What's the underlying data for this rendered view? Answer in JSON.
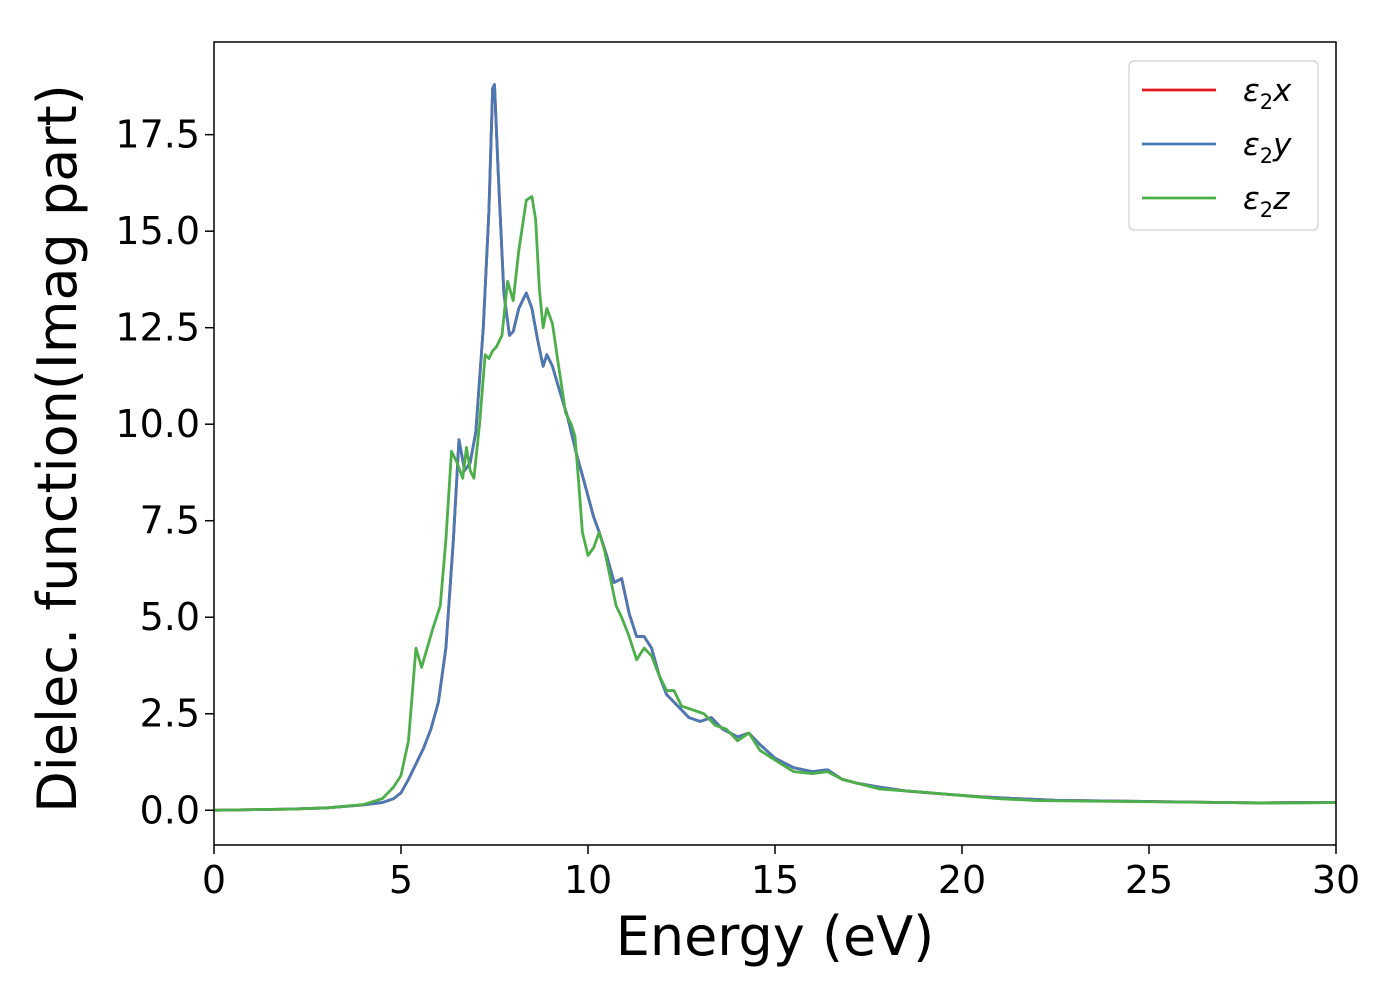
{
  "chart_data": {
    "type": "line",
    "title": "",
    "xlabel": "Energy (eV)",
    "ylabel": "Dielec. function(Imag part)",
    "xlim": [
      0,
      30
    ],
    "ylim": [
      -0.9,
      19.9
    ],
    "xticks": [
      0,
      5,
      10,
      15,
      20,
      25,
      30
    ],
    "xtick_labels": [
      "0",
      "5",
      "10",
      "15",
      "20",
      "25",
      "30"
    ],
    "yticks": [
      0.0,
      2.5,
      5.0,
      7.5,
      10.0,
      12.5,
      15.0,
      17.5
    ],
    "ytick_labels": [
      "0.0",
      "2.5",
      "5.0",
      "7.5",
      "10.0",
      "12.5",
      "15.0",
      "17.5"
    ],
    "grid": false,
    "legend_position": "top-right",
    "series": [
      {
        "name": "ε₂x",
        "legend_base": "ε",
        "legend_sub": "2",
        "legend_tail": "x",
        "color": "#e41a1c",
        "x": [
          0,
          2,
          3,
          4,
          4.5,
          4.8,
          5.0,
          5.2,
          5.4,
          5.6,
          5.8,
          6.0,
          6.2,
          6.4,
          6.55,
          6.7,
          6.85,
          7.0,
          7.2,
          7.35,
          7.45,
          7.5,
          7.6,
          7.75,
          7.9,
          8.0,
          8.15,
          8.35,
          8.5,
          8.65,
          8.8,
          8.9,
          9.05,
          9.2,
          9.45,
          9.7,
          9.9,
          10.15,
          10.3,
          10.5,
          10.7,
          10.9,
          11.1,
          11.3,
          11.5,
          11.7,
          11.9,
          12.1,
          12.4,
          12.7,
          13.0,
          13.3,
          13.6,
          13.8,
          14.0,
          14.3,
          14.6,
          15.0,
          15.5,
          16.0,
          16.4,
          16.8,
          17.2,
          17.8,
          18.5,
          19.5,
          20.5,
          21.5,
          22.5,
          24,
          25.5,
          27,
          28,
          29,
          30
        ],
        "y": [
          0,
          0.03,
          0.06,
          0.14,
          0.2,
          0.3,
          0.45,
          0.8,
          1.2,
          1.6,
          2.1,
          2.8,
          4.2,
          7.0,
          9.6,
          8.8,
          9.0,
          9.8,
          12.5,
          15.5,
          18.7,
          18.8,
          16.5,
          13.4,
          12.3,
          12.4,
          13.0,
          13.4,
          13.0,
          12.2,
          11.5,
          11.8,
          11.5,
          11.0,
          10.2,
          9.2,
          8.5,
          7.6,
          7.2,
          6.6,
          5.9,
          6.0,
          5.1,
          4.5,
          4.5,
          4.2,
          3.5,
          3.0,
          2.7,
          2.4,
          2.3,
          2.4,
          2.1,
          2.0,
          1.9,
          2.0,
          1.7,
          1.35,
          1.1,
          1.0,
          1.05,
          0.8,
          0.7,
          0.6,
          0.5,
          0.42,
          0.35,
          0.3,
          0.26,
          0.24,
          0.22,
          0.2,
          0.19,
          0.2,
          0.2
        ]
      },
      {
        "name": "ε₂y",
        "legend_base": "ε",
        "legend_sub": "2",
        "legend_tail": "y",
        "color": "#4a7ab5",
        "x": [
          0,
          2,
          3,
          4,
          4.5,
          4.8,
          5.0,
          5.2,
          5.4,
          5.6,
          5.8,
          6.0,
          6.2,
          6.4,
          6.55,
          6.7,
          6.85,
          7.0,
          7.2,
          7.35,
          7.45,
          7.5,
          7.6,
          7.75,
          7.9,
          8.0,
          8.15,
          8.35,
          8.5,
          8.65,
          8.8,
          8.9,
          9.05,
          9.2,
          9.45,
          9.7,
          9.9,
          10.15,
          10.3,
          10.5,
          10.7,
          10.9,
          11.1,
          11.3,
          11.5,
          11.7,
          11.9,
          12.1,
          12.4,
          12.7,
          13.0,
          13.3,
          13.6,
          13.8,
          14.0,
          14.3,
          14.6,
          15.0,
          15.5,
          16.0,
          16.4,
          16.8,
          17.2,
          17.8,
          18.5,
          19.5,
          20.5,
          21.5,
          22.5,
          24,
          25.5,
          27,
          28,
          29,
          30
        ],
        "y": [
          0,
          0.03,
          0.06,
          0.14,
          0.2,
          0.3,
          0.45,
          0.8,
          1.2,
          1.6,
          2.1,
          2.8,
          4.2,
          7.0,
          9.6,
          8.8,
          9.0,
          9.8,
          12.5,
          15.5,
          18.7,
          18.8,
          16.5,
          13.4,
          12.3,
          12.4,
          13.0,
          13.4,
          13.0,
          12.2,
          11.5,
          11.8,
          11.5,
          11.0,
          10.2,
          9.2,
          8.5,
          7.6,
          7.2,
          6.6,
          5.9,
          6.0,
          5.1,
          4.5,
          4.5,
          4.2,
          3.5,
          3.0,
          2.7,
          2.4,
          2.3,
          2.4,
          2.1,
          2.0,
          1.9,
          2.0,
          1.7,
          1.35,
          1.1,
          1.0,
          1.05,
          0.8,
          0.7,
          0.6,
          0.5,
          0.42,
          0.35,
          0.3,
          0.26,
          0.24,
          0.22,
          0.2,
          0.19,
          0.2,
          0.2
        ]
      },
      {
        "name": "ε₂z",
        "legend_base": "ε",
        "legend_sub": "2",
        "legend_tail": "z",
        "color": "#4daf4a",
        "x": [
          0,
          2,
          3,
          4,
          4.5,
          4.8,
          5.0,
          5.2,
          5.4,
          5.55,
          5.7,
          5.85,
          6.05,
          6.2,
          6.35,
          6.5,
          6.65,
          6.75,
          6.85,
          6.95,
          7.1,
          7.25,
          7.35,
          7.45,
          7.55,
          7.7,
          7.85,
          8.0,
          8.15,
          8.35,
          8.5,
          8.6,
          8.7,
          8.8,
          8.9,
          9.05,
          9.2,
          9.4,
          9.55,
          9.65,
          9.75,
          9.85,
          10.0,
          10.15,
          10.3,
          10.45,
          10.6,
          10.75,
          10.9,
          11.1,
          11.3,
          11.5,
          11.7,
          11.9,
          12.1,
          12.3,
          12.5,
          12.8,
          13.1,
          13.4,
          13.7,
          14.0,
          14.3,
          14.6,
          15.0,
          15.5,
          16.0,
          16.4,
          16.8,
          17.2,
          17.8,
          18.5,
          19.2,
          20.0,
          21.0,
          22.0,
          23.0,
          24.0,
          25.0,
          26.0,
          27.0,
          28.0,
          29.0,
          30.0
        ],
        "y": [
          0,
          0.03,
          0.06,
          0.15,
          0.3,
          0.6,
          0.9,
          1.8,
          4.2,
          3.7,
          4.2,
          4.7,
          5.3,
          7.0,
          9.3,
          9.0,
          8.6,
          9.4,
          8.8,
          8.6,
          10.0,
          11.8,
          11.7,
          11.9,
          12.0,
          12.3,
          13.7,
          13.2,
          14.5,
          15.8,
          15.9,
          15.3,
          13.5,
          12.5,
          13.0,
          12.6,
          11.6,
          10.3,
          10.0,
          9.7,
          8.5,
          7.2,
          6.6,
          6.8,
          7.2,
          6.7,
          6.0,
          5.3,
          5.0,
          4.5,
          3.9,
          4.2,
          4.0,
          3.5,
          3.1,
          3.1,
          2.7,
          2.6,
          2.5,
          2.2,
          2.1,
          1.8,
          2.0,
          1.55,
          1.3,
          1.0,
          0.95,
          1.0,
          0.8,
          0.7,
          0.55,
          0.5,
          0.45,
          0.38,
          0.3,
          0.25,
          0.24,
          0.23,
          0.22,
          0.21,
          0.2,
          0.19,
          0.19,
          0.2
        ]
      }
    ]
  }
}
